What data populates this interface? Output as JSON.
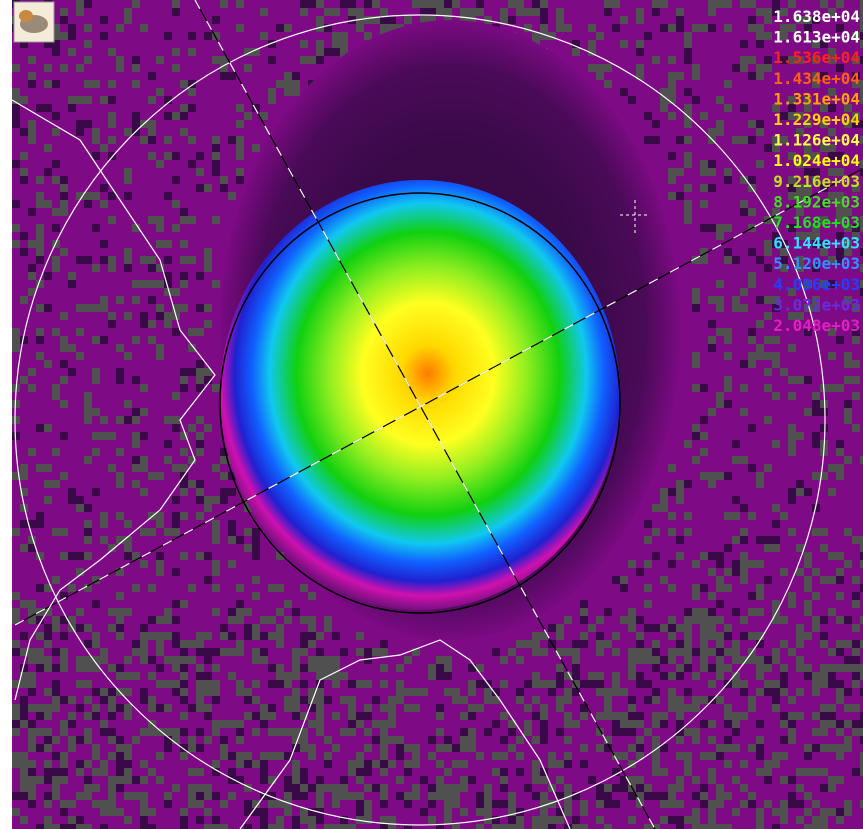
{
  "legend": {
    "labels": [
      "1.638e+04",
      "1.613e+04",
      "1.536e+04",
      "1.434e+04",
      "1.331e+04",
      "1.229e+04",
      "1.126e+04",
      "1.024e+04",
      "9.216e+03",
      "8.192e+03",
      "7.168e+03",
      "6.144e+03",
      "5.120e+03",
      "4.096e+03",
      "3.072e+03",
      "2.048e+03"
    ]
  }
}
